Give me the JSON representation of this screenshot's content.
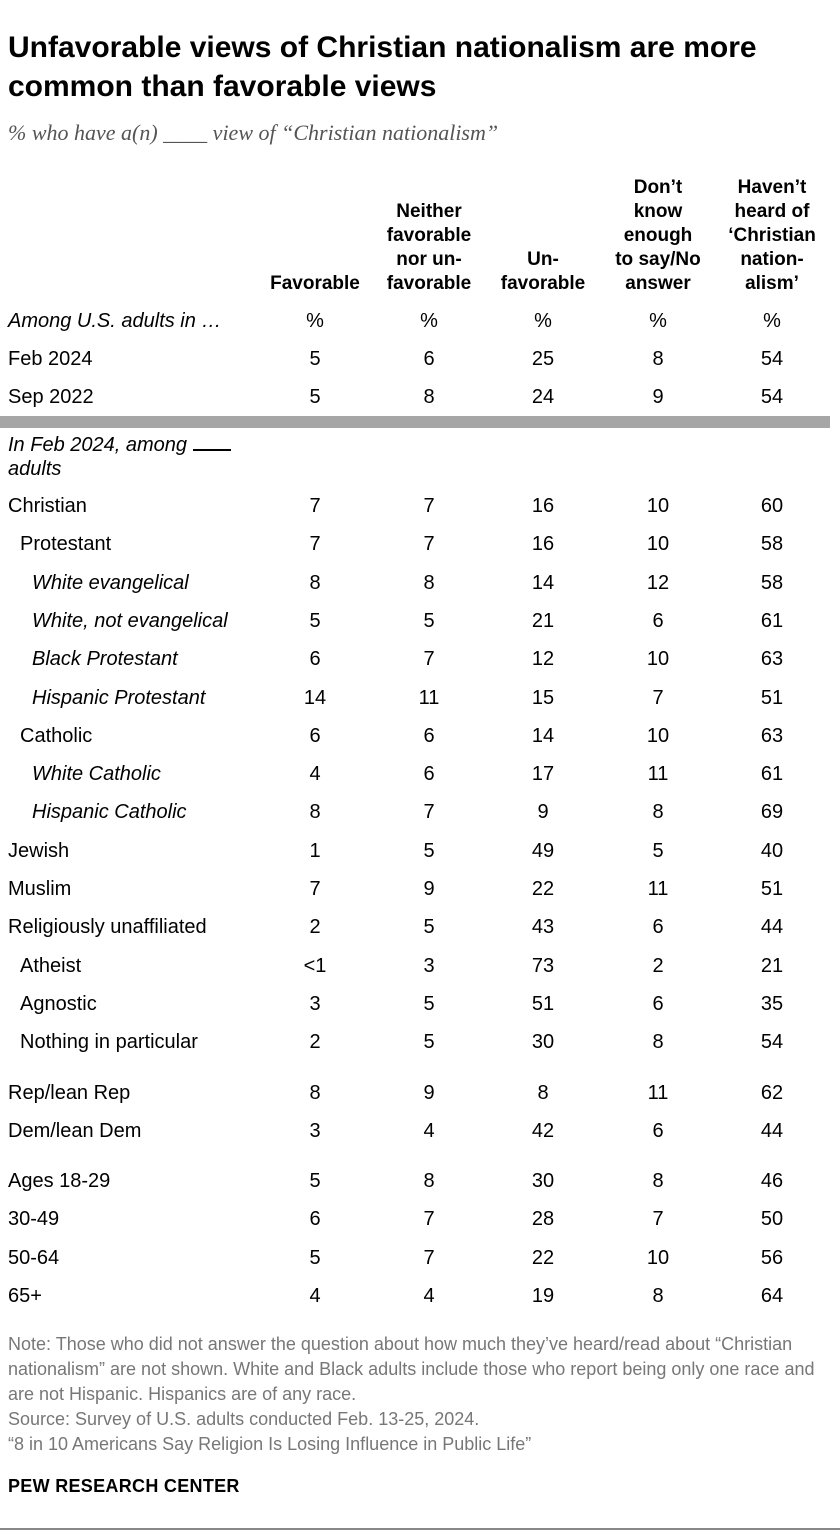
{
  "title": "Unfavorable views of Christian nationalism are more common than favorable views",
  "subtitle": "% who have a(n) ____ view of “Christian nationalism”",
  "chart_data": {
    "type": "table",
    "columns": [
      {
        "key": "favorable",
        "label": [
          "Favorable"
        ]
      },
      {
        "key": "neither",
        "label": [
          "Neither",
          "favorable",
          "nor un-",
          "favorable"
        ]
      },
      {
        "key": "unfavorable",
        "label": [
          "Un-",
          "favorable"
        ]
      },
      {
        "key": "dont_know",
        "label": [
          "Don’t",
          "know",
          "enough",
          "to say/No",
          "answer"
        ]
      },
      {
        "key": "havent_heard",
        "label": [
          "Haven’t",
          "heard of",
          "‘Christian",
          "nation-",
          "alism’"
        ]
      }
    ],
    "unit_row": {
      "label": "Among U.S. adults in …",
      "values": [
        "%",
        "%",
        "%",
        "%",
        "%"
      ]
    },
    "trend_rows": [
      {
        "label": "Feb 2024",
        "values": [
          "5",
          "6",
          "25",
          "8",
          "54"
        ]
      },
      {
        "label": "Sep 2022",
        "values": [
          "5",
          "8",
          "24",
          "9",
          "54"
        ]
      }
    ],
    "section_label": {
      "before": "In Feb 2024, among ",
      "after": " adults"
    },
    "group_rows": [
      {
        "label": "Christian",
        "values": [
          "7",
          "7",
          "16",
          "10",
          "60"
        ],
        "indent": 0,
        "italic": false
      },
      {
        "label": "Protestant",
        "values": [
          "7",
          "7",
          "16",
          "10",
          "58"
        ],
        "indent": 1,
        "italic": false
      },
      {
        "label": "White evangelical",
        "values": [
          "8",
          "8",
          "14",
          "12",
          "58"
        ],
        "indent": 2,
        "italic": true
      },
      {
        "label": "White, not evangelical",
        "values": [
          "5",
          "5",
          "21",
          "6",
          "61"
        ],
        "indent": 2,
        "italic": true
      },
      {
        "label": "Black Protestant",
        "values": [
          "6",
          "7",
          "12",
          "10",
          "63"
        ],
        "indent": 2,
        "italic": true
      },
      {
        "label": "Hispanic Protestant",
        "values": [
          "14",
          "11",
          "15",
          "7",
          "51"
        ],
        "indent": 2,
        "italic": true
      },
      {
        "label": "Catholic",
        "values": [
          "6",
          "6",
          "14",
          "10",
          "63"
        ],
        "indent": 1,
        "italic": false
      },
      {
        "label": "White Catholic",
        "values": [
          "4",
          "6",
          "17",
          "11",
          "61"
        ],
        "indent": 2,
        "italic": true
      },
      {
        "label": "Hispanic Catholic",
        "values": [
          "8",
          "7",
          "9",
          "8",
          "69"
        ],
        "indent": 2,
        "italic": true
      },
      {
        "label": "Jewish",
        "values": [
          "1",
          "5",
          "49",
          "5",
          "40"
        ],
        "indent": 0,
        "italic": false
      },
      {
        "label": "Muslim",
        "values": [
          "7",
          "9",
          "22",
          "11",
          "51"
        ],
        "indent": 0,
        "italic": false
      },
      {
        "label": "Religiously unaffiliated",
        "values": [
          "2",
          "5",
          "43",
          "6",
          "44"
        ],
        "indent": 0,
        "italic": false
      },
      {
        "label": "Atheist",
        "values": [
          "<1",
          "3",
          "73",
          "2",
          "21"
        ],
        "indent": 1,
        "italic": false
      },
      {
        "label": "Agnostic",
        "values": [
          "3",
          "5",
          "51",
          "6",
          "35"
        ],
        "indent": 1,
        "italic": false
      },
      {
        "label": "Nothing in particular",
        "values": [
          "2",
          "5",
          "30",
          "8",
          "54"
        ],
        "indent": 1,
        "italic": false
      },
      {
        "label": "Rep/lean Rep",
        "values": [
          "8",
          "9",
          "8",
          "11",
          "62"
        ],
        "indent": 0,
        "italic": false
      },
      {
        "label": "Dem/lean Dem",
        "values": [
          "3",
          "4",
          "42",
          "6",
          "44"
        ],
        "indent": 0,
        "italic": false
      },
      {
        "label": "Ages 18-29",
        "values": [
          "5",
          "8",
          "30",
          "8",
          "46"
        ],
        "indent": 0,
        "italic": false
      },
      {
        "label": "30-49",
        "values": [
          "6",
          "7",
          "28",
          "7",
          "50"
        ],
        "indent": 0,
        "italic": false
      },
      {
        "label": "50-64",
        "values": [
          "5",
          "7",
          "22",
          "10",
          "56"
        ],
        "indent": 0,
        "italic": false
      },
      {
        "label": "65+",
        "values": [
          "4",
          "4",
          "19",
          "8",
          "64"
        ],
        "indent": 0,
        "italic": false
      }
    ]
  },
  "note": [
    "Note: Those who did not answer the question about how much they’ve heard/read about “Christian nationalism” are not shown. White and Black adults include those who report being only one race and are not Hispanic. Hispanics are of any race.",
    "Source: Survey of U.S. adults conducted Feb. 13-25, 2024.",
    "“8 in 10 Americans Say Religion Is Losing Influence in Public Life”"
  ],
  "brand": "PEW RESEARCH CENTER"
}
